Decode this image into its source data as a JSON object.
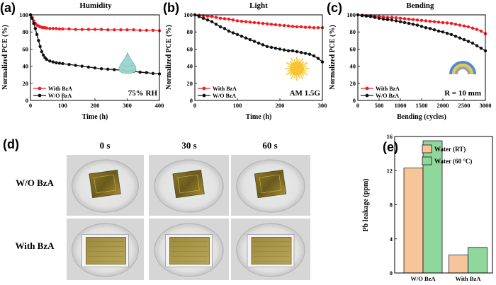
{
  "colors": {
    "with_series": "#ee1c24",
    "without_series": "#111111",
    "bar_rt": "#f6c59a",
    "bar_60": "#8fd89c",
    "sun": "#f7c534",
    "drop": "#9fd6cf",
    "rainbow": [
      "#4f8ad6",
      "#e7c94a",
      "#9aa3ad"
    ]
  },
  "icons": {
    "humidity": "water-drop-icon",
    "light": "sun-icon",
    "bending": "rainbow-arc-icon"
  },
  "chart_data": [
    {
      "id": "a",
      "panel_label": "(a)",
      "type": "line",
      "title": "Humidity",
      "xlabel": "Time (h)",
      "ylabel": "Normalized PCE (%)",
      "xlim": [
        0,
        400
      ],
      "ylim": [
        0,
        100
      ],
      "xticks": [
        0,
        100,
        200,
        300,
        400
      ],
      "yticks": [
        0,
        20,
        40,
        60,
        80,
        100
      ],
      "annotation": "75% RH",
      "legend_position": "bottom-left",
      "series": [
        {
          "name": "With BzA",
          "color": "#ee1c24",
          "x": [
            0,
            5,
            10,
            15,
            20,
            25,
            30,
            35,
            40,
            45,
            50,
            60,
            70,
            80,
            90,
            100,
            120,
            140,
            160,
            180,
            200,
            220,
            240,
            260,
            280,
            300,
            320,
            340,
            360,
            380,
            400
          ],
          "values": [
            100,
            97,
            93,
            90,
            88,
            87,
            86,
            85.5,
            85,
            85,
            84.5,
            84,
            84,
            84,
            83.5,
            83.5,
            83.5,
            83,
            83,
            83,
            83,
            83,
            82.5,
            82.5,
            82.5,
            82.5,
            82.5,
            82,
            82,
            82,
            81.5
          ]
        },
        {
          "name": "W/O BzA",
          "color": "#111111",
          "x": [
            0,
            5,
            10,
            15,
            20,
            25,
            30,
            35,
            40,
            45,
            50,
            60,
            70,
            80,
            90,
            100,
            120,
            140,
            160,
            180,
            200,
            220,
            240,
            260,
            280,
            300,
            320,
            340,
            360,
            380,
            400
          ],
          "values": [
            100,
            96,
            90,
            84,
            77,
            70,
            63,
            57,
            53,
            50,
            48,
            46,
            45,
            44,
            43.5,
            43,
            42,
            41,
            40,
            39,
            38,
            37,
            36.5,
            36,
            35.5,
            35,
            34,
            33,
            32.5,
            31.5,
            31
          ]
        }
      ]
    },
    {
      "id": "b",
      "panel_label": "(b)",
      "type": "line",
      "title": "Light",
      "xlabel": "Time (h)",
      "ylabel": "Normalized PCE (%)",
      "xlim": [
        0,
        300
      ],
      "ylim": [
        0,
        100
      ],
      "xticks": [
        0,
        100,
        200,
        300
      ],
      "yticks": [
        0,
        20,
        40,
        60,
        80,
        100
      ],
      "annotation": "AM 1.5G",
      "legend_position": "bottom-left",
      "series": [
        {
          "name": "With BzA",
          "color": "#ee1c24",
          "x": [
            0,
            10,
            20,
            30,
            40,
            50,
            60,
            70,
            80,
            90,
            100,
            110,
            120,
            130,
            140,
            150,
            160,
            170,
            180,
            190,
            200,
            210,
            220,
            230,
            240,
            250,
            260,
            270,
            280,
            290,
            300
          ],
          "values": [
            100,
            99.5,
            99,
            98.5,
            98,
            97,
            96,
            95.5,
            95,
            94,
            93,
            92.5,
            92,
            91.5,
            91,
            90.5,
            90,
            89.5,
            89,
            88.5,
            88,
            87.5,
            87,
            86.5,
            86,
            86,
            85.5,
            85.5,
            85,
            85,
            85
          ]
        },
        {
          "name": "W/O BzA",
          "color": "#111111",
          "x": [
            0,
            10,
            20,
            30,
            40,
            50,
            60,
            70,
            80,
            90,
            100,
            110,
            120,
            130,
            140,
            150,
            160,
            170,
            180,
            190,
            200,
            210,
            220,
            230,
            240,
            250,
            260,
            270,
            280,
            290,
            300
          ],
          "values": [
            100,
            98,
            96,
            94,
            92,
            89,
            86,
            84,
            81,
            79,
            77,
            75,
            73,
            71,
            69,
            67,
            65,
            63,
            62,
            61,
            60,
            59,
            58,
            58,
            57,
            56,
            55,
            54,
            52,
            49,
            45
          ]
        }
      ]
    },
    {
      "id": "c",
      "panel_label": "(c)",
      "type": "line",
      "title": "Bending",
      "xlabel": "Bending (cycles)",
      "ylabel": "Normalized PCE (%)",
      "xlim": [
        0,
        3000
      ],
      "ylim": [
        0,
        100
      ],
      "xticks": [
        0,
        500,
        1000,
        1500,
        2000,
        2500,
        3000
      ],
      "yticks": [
        0,
        20,
        40,
        60,
        80,
        100
      ],
      "annotation": "R = 10 mm",
      "legend_position": "bottom-left",
      "series": [
        {
          "name": "With BzA",
          "color": "#ee1c24",
          "x": [
            0,
            100,
            200,
            300,
            400,
            500,
            600,
            700,
            800,
            900,
            1000,
            1100,
            1200,
            1300,
            1400,
            1500,
            1600,
            1700,
            1800,
            1900,
            2000,
            2100,
            2200,
            2300,
            2400,
            2500,
            2600,
            2700,
            2800,
            2900,
            3000
          ],
          "values": [
            100,
            99.5,
            99,
            99,
            98.5,
            98,
            97.5,
            97,
            97,
            96.5,
            96,
            95.5,
            95,
            94.5,
            94,
            93.5,
            93,
            92.5,
            92,
            91.5,
            91,
            90.5,
            90,
            89,
            88,
            87,
            86,
            84.5,
            83,
            81,
            78
          ]
        },
        {
          "name": "W/O BzA",
          "color": "#111111",
          "x": [
            0,
            100,
            200,
            300,
            400,
            500,
            600,
            700,
            800,
            900,
            1000,
            1100,
            1200,
            1300,
            1400,
            1500,
            1600,
            1700,
            1800,
            1900,
            2000,
            2100,
            2200,
            2300,
            2400,
            2500,
            2600,
            2700,
            2800,
            2900,
            3000
          ],
          "values": [
            100,
            99,
            98.5,
            98,
            97,
            96,
            95,
            94.5,
            94,
            93,
            92,
            91,
            90,
            89,
            88,
            86.5,
            85,
            84,
            82.5,
            81,
            80,
            78.5,
            77,
            75,
            73,
            71,
            69,
            67,
            64,
            61,
            58
          ]
        }
      ]
    },
    {
      "id": "e",
      "panel_label": "(e)",
      "type": "bar",
      "title": "",
      "xlabel": "",
      "ylabel": "Pb leakage (ppm)",
      "ylim": [
        0,
        16
      ],
      "yticks": [
        0,
        4,
        8,
        12,
        16
      ],
      "categories": [
        "W/O BzA",
        "With BzA"
      ],
      "legend_position": "top-right",
      "series": [
        {
          "name": "Water (RT)",
          "color": "#f6c59a",
          "values": [
            12.3,
            2.1
          ]
        },
        {
          "name": "Water (60 °C)",
          "color": "#8fd89c",
          "values": [
            15.5,
            3.0
          ]
        }
      ]
    }
  ],
  "photo_panel": {
    "panel_label": "(d)",
    "column_labels": [
      "0 s",
      "30 s",
      "60 s"
    ],
    "row_labels": [
      "W/O BzA",
      "With BzA"
    ]
  }
}
